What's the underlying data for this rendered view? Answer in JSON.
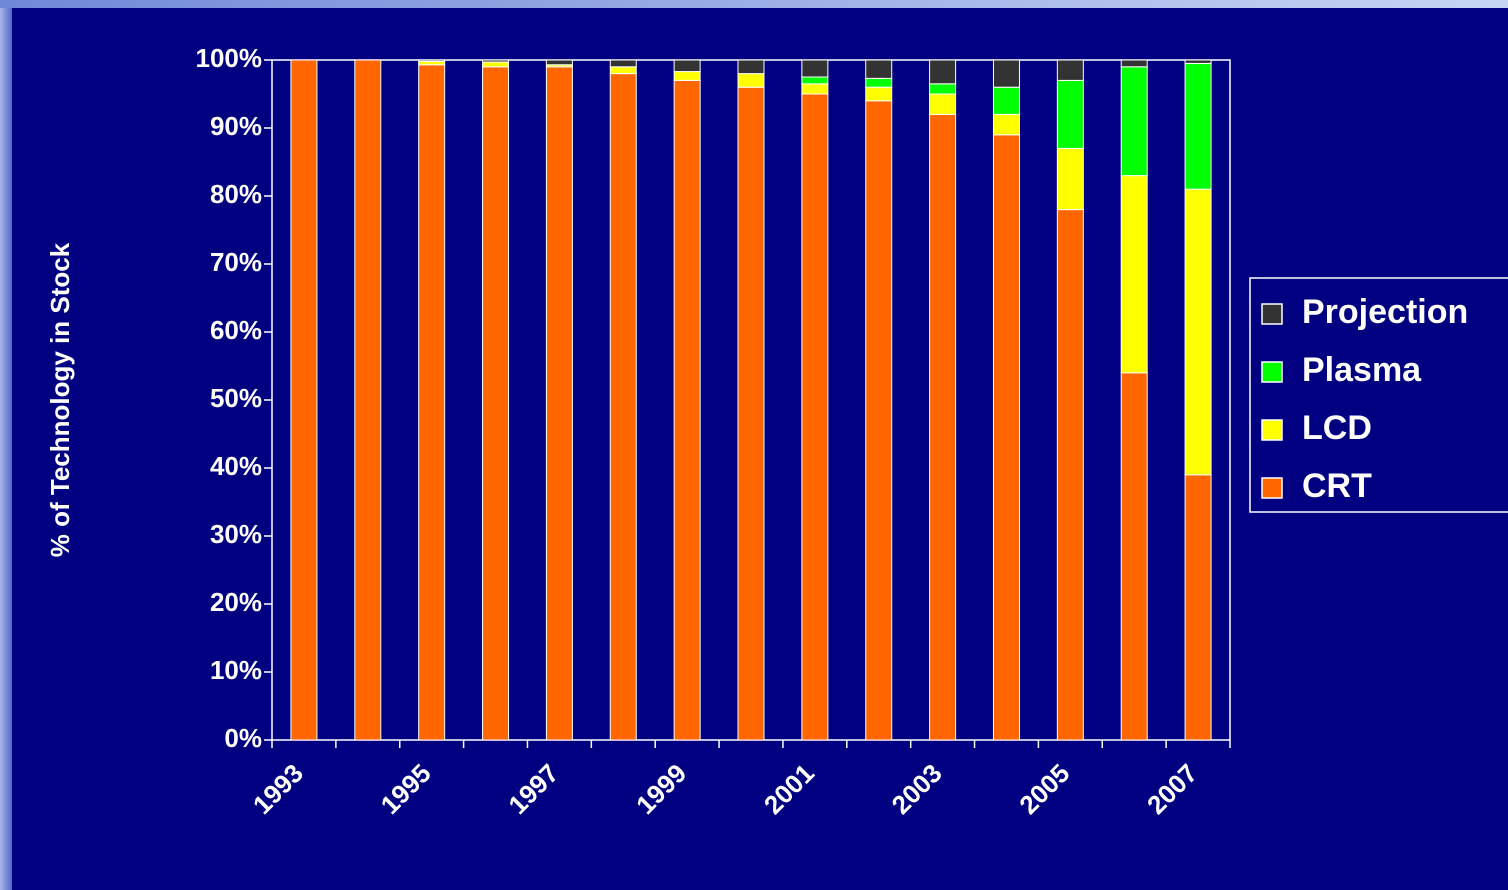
{
  "chart_data": {
    "type": "stacked_bar",
    "y_label": "% of Technology in Stock",
    "categories": [
      "1993",
      null,
      "1995",
      null,
      "1997",
      null,
      "1999",
      null,
      "2001",
      null,
      "2003",
      null,
      "2005",
      null,
      "2007"
    ],
    "series": [
      {
        "name": "CRT",
        "color": "#ff6600",
        "values": [
          100,
          100,
          99.3,
          99,
          99,
          98,
          97,
          96,
          95,
          94,
          92,
          89,
          78,
          54,
          39
        ]
      },
      {
        "name": "LCD",
        "color": "#ffff00",
        "values": [
          0,
          0,
          0.5,
          0.7,
          0.3,
          1,
          1.3,
          2,
          1.5,
          2,
          3,
          3,
          9,
          29,
          42
        ]
      },
      {
        "name": "Plasma",
        "color": "#00ff00",
        "values": [
          0,
          0,
          0,
          0,
          0,
          0,
          0,
          0,
          1,
          1.3,
          1.5,
          4,
          10,
          16,
          18.5
        ]
      },
      {
        "name": "Projection",
        "color": "#333333",
        "values": [
          0,
          0,
          0.2,
          0.3,
          0.7,
          1,
          1.7,
          2,
          2.5,
          2.7,
          3.5,
          4,
          3,
          1,
          0.5
        ]
      }
    ],
    "ylim": [
      0,
      100
    ],
    "yticks": [
      {
        "value": 0,
        "label": "0%"
      },
      {
        "value": 10,
        "label": "10%"
      },
      {
        "value": 20,
        "label": "20%"
      },
      {
        "value": 30,
        "label": "30%"
      },
      {
        "value": 40,
        "label": "40%"
      },
      {
        "value": 50,
        "label": "50%"
      },
      {
        "value": 60,
        "label": "60%"
      },
      {
        "value": 70,
        "label": "70%"
      },
      {
        "value": 80,
        "label": "80%"
      },
      {
        "value": 90,
        "label": "90%"
      },
      {
        "value": 100,
        "label": "100%"
      }
    ],
    "legend": "right"
  }
}
